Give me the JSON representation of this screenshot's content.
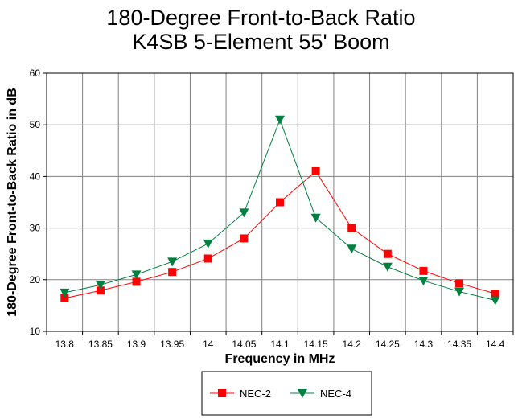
{
  "chart_data": {
    "type": "line",
    "title": "180-Degree Front-to-Back Ratio",
    "subtitle": "K4SB 5-Element 55' Boom",
    "xlabel": "Frequency in MHz",
    "ylabel": "180-Degree Front-to-Back Ratio in dB",
    "categories": [
      "13.8",
      "13.85",
      "13.9",
      "13.95",
      "14",
      "14.05",
      "14.1",
      "14.15",
      "14.2",
      "14.25",
      "14.3",
      "14.35",
      "14.4"
    ],
    "ylim": [
      10,
      60
    ],
    "yticks": [
      "10",
      "20",
      "30",
      "40",
      "50",
      "60"
    ],
    "grid": true,
    "legend_position": "bottom",
    "series": [
      {
        "name": "NEC-2",
        "color": "#ff0000",
        "marker": "square",
        "values": [
          16.4,
          17.9,
          19.6,
          21.5,
          24.1,
          28.0,
          35.0,
          41.0,
          30.0,
          25.0,
          21.7,
          19.3,
          17.3
        ]
      },
      {
        "name": "NEC-4",
        "color": "#008040",
        "marker": "triangle-down",
        "values": [
          17.5,
          19.0,
          21.0,
          23.5,
          27.0,
          33.0,
          51.0,
          32.0,
          26.0,
          22.5,
          19.8,
          17.7,
          16.0
        ]
      }
    ]
  }
}
